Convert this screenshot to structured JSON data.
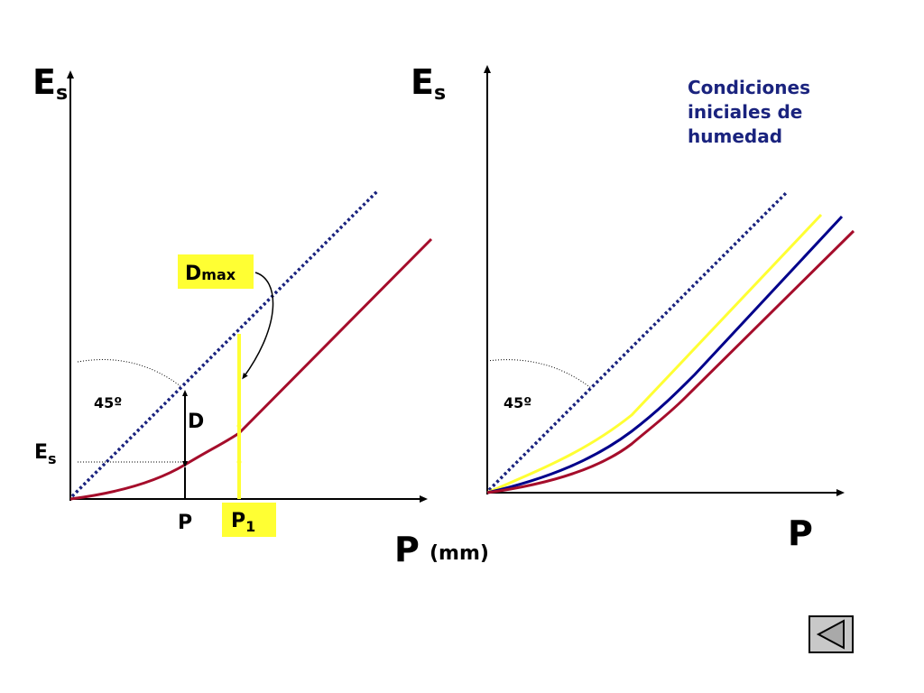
{
  "colors": {
    "axis": "#000000",
    "line45": "#1a237e",
    "curve_red": "#a50d2b",
    "curve_blue": "#00008b",
    "curve_yellow": "#ffff33",
    "highlight": "#ffff33",
    "legend_text": "#1a237e"
  },
  "left_diagram": {
    "y_axis_label_main": "E",
    "y_axis_label_sub": "s",
    "x_axis_label": "P",
    "x_axis_units": "(mm)",
    "angle_label": "45º",
    "d_label": "D",
    "dmax_main": "D",
    "dmax_sub": "max",
    "es_tick_main": "E",
    "es_tick_sub": "s",
    "p_tick": "P",
    "p1_main": "P",
    "p1_sub": "1"
  },
  "right_diagram": {
    "y_axis_label_main": "E",
    "y_axis_label_sub": "s",
    "x_axis_label": "P",
    "angle_label": "45º",
    "legend_lines": [
      "Condiciones",
      "iniciales de",
      "humedad"
    ]
  },
  "nav": {
    "back_icon": "triangle-left-icon"
  }
}
